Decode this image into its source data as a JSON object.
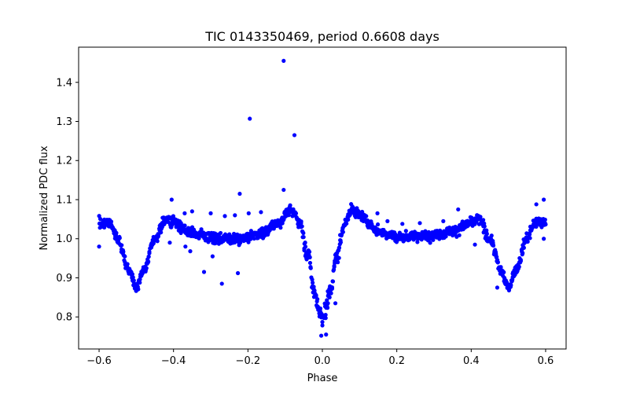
{
  "chart_data": {
    "type": "scatter",
    "title": "TIC 0143350469, period 0.6608 days",
    "xlabel": "Phase",
    "ylabel": "Normalized PDC flux",
    "xlim": [
      -0.655,
      0.655
    ],
    "ylim": [
      0.718,
      1.49
    ],
    "xticks": [
      -0.6,
      -0.4,
      -0.2,
      0.0,
      0.2,
      0.4,
      0.6
    ],
    "xtick_labels": [
      "−0.6",
      "−0.4",
      "−0.2",
      "0.0",
      "0.2",
      "0.4",
      "0.6"
    ],
    "yticks": [
      0.8,
      0.9,
      1.0,
      1.1,
      1.2,
      1.3,
      1.4
    ],
    "ytick_labels": [
      "0.8",
      "0.9",
      "1.0",
      "1.1",
      "1.2",
      "1.3",
      "1.4"
    ],
    "grid": false,
    "marker_color": "#0000ff",
    "curve_knots": {
      "x": [
        -0.6,
        -0.57,
        -0.55,
        -0.52,
        -0.5,
        -0.48,
        -0.45,
        -0.42,
        -0.4,
        -0.37,
        -0.33,
        -0.28,
        -0.22,
        -0.16,
        -0.12,
        -0.09,
        -0.075,
        -0.06,
        -0.04,
        -0.02,
        -0.005,
        0.0,
        0.005,
        0.02,
        0.04,
        0.06,
        0.08,
        0.1,
        0.15,
        0.2,
        0.3,
        0.35,
        0.4,
        0.42,
        0.45,
        0.48,
        0.5,
        0.52,
        0.55,
        0.57,
        0.6
      ],
      "y": [
        1.04,
        1.04,
        1.0,
        0.92,
        0.875,
        0.92,
        1.0,
        1.05,
        1.045,
        1.02,
        1.01,
        1.0,
        1.0,
        1.015,
        1.04,
        1.07,
        1.065,
        1.04,
        0.96,
        0.86,
        0.81,
        0.8,
        0.81,
        0.86,
        0.96,
        1.04,
        1.075,
        1.06,
        1.02,
        1.005,
        1.01,
        1.02,
        1.04,
        1.05,
        1.0,
        0.92,
        0.875,
        0.92,
        1.0,
        1.04,
        1.04
      ]
    },
    "outliers": [
      {
        "x": -0.104,
        "y": 1.455
      },
      {
        "x": -0.195,
        "y": 1.307
      },
      {
        "x": -0.075,
        "y": 1.265
      },
      {
        "x": -0.104,
        "y": 1.125
      },
      {
        "x": -0.222,
        "y": 1.115
      },
      {
        "x": -0.27,
        "y": 0.885
      },
      {
        "x": -0.227,
        "y": 0.912
      },
      {
        "x": -0.318,
        "y": 0.915
      },
      {
        "x": -0.295,
        "y": 0.955
      },
      {
        "x": -0.355,
        "y": 0.968
      },
      {
        "x": -0.3,
        "y": 1.065
      },
      {
        "x": -0.262,
        "y": 1.058
      },
      {
        "x": -0.235,
        "y": 1.06
      },
      {
        "x": -0.198,
        "y": 1.065
      },
      {
        "x": -0.165,
        "y": 1.068
      },
      {
        "x": -0.368,
        "y": 0.98
      },
      {
        "x": -0.41,
        "y": 0.99
      },
      {
        "x": -0.35,
        "y": 1.07
      },
      {
        "x": 0.01,
        "y": 0.755
      },
      {
        "x": -0.003,
        "y": 0.752
      },
      {
        "x": 0.015,
        "y": 0.835
      },
      {
        "x": 0.035,
        "y": 0.835
      },
      {
        "x": 0.148,
        "y": 1.065
      },
      {
        "x": 0.175,
        "y": 1.045
      },
      {
        "x": 0.215,
        "y": 1.038
      },
      {
        "x": 0.262,
        "y": 1.04
      },
      {
        "x": 0.365,
        "y": 1.075
      },
      {
        "x": 0.325,
        "y": 1.045
      },
      {
        "x": 0.47,
        "y": 0.875
      },
      {
        "x": 0.41,
        "y": 0.985
      },
      {
        "x": 0.575,
        "y": 1.088
      },
      {
        "x": 0.595,
        "y": 1.1
      },
      {
        "x": -0.6,
        "y": 0.98
      },
      {
        "x": 0.595,
        "y": 1.0
      },
      {
        "x": -0.405,
        "y": 1.1
      },
      {
        "x": -0.37,
        "y": 1.065
      }
    ]
  }
}
